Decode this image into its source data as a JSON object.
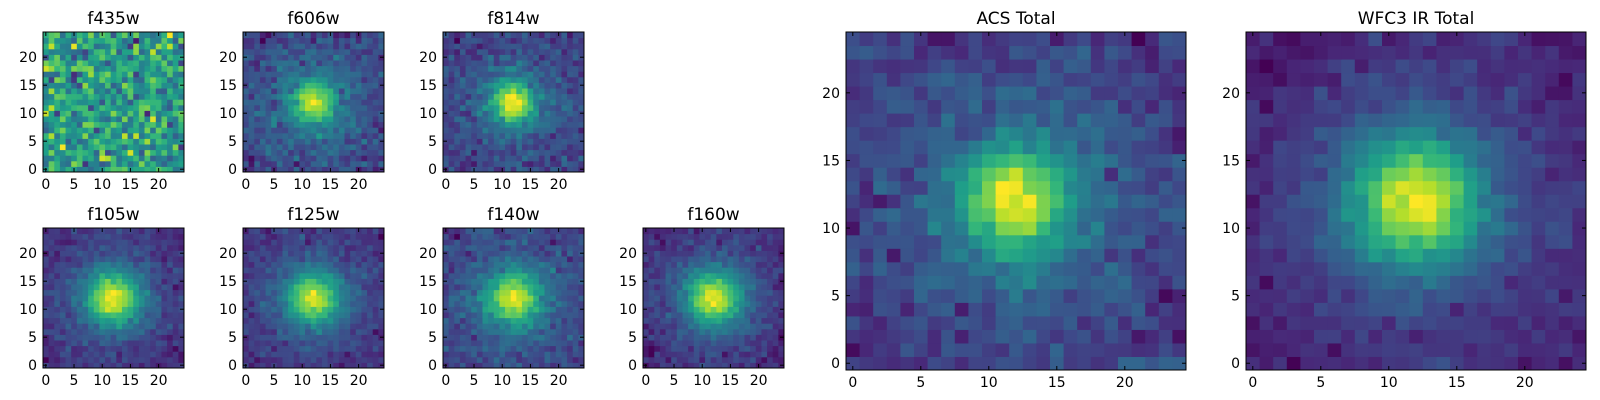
{
  "chart_data": [
    {
      "type": "heatmap",
      "title": "f435w",
      "xticks": [
        0,
        5,
        10,
        15,
        20
      ],
      "yticks": [
        0,
        5,
        10,
        15,
        20
      ],
      "xlim": [
        -0.5,
        24.5
      ],
      "ylim": [
        -0.5,
        24.5
      ],
      "grid_size": 25,
      "colormap": "viridis",
      "source_center": null,
      "source_sigma": 0,
      "noise_level": 0.95,
      "seed": 11
    },
    {
      "type": "heatmap",
      "title": "f606w",
      "xticks": [
        0,
        5,
        10,
        15,
        20
      ],
      "yticks": [
        0,
        5,
        10,
        15,
        20
      ],
      "xlim": [
        -0.5,
        24.5
      ],
      "ylim": [
        -0.5,
        24.5
      ],
      "grid_size": 25,
      "colormap": "viridis",
      "source_center": [
        12,
        12
      ],
      "source_sigma": 2.6,
      "noise_level": 0.38,
      "seed": 23
    },
    {
      "type": "heatmap",
      "title": "f814w",
      "xticks": [
        0,
        5,
        10,
        15,
        20
      ],
      "yticks": [
        0,
        5,
        10,
        15,
        20
      ],
      "xlim": [
        -0.5,
        24.5
      ],
      "ylim": [
        -0.5,
        24.5
      ],
      "grid_size": 25,
      "colormap": "viridis",
      "source_center": [
        12,
        12
      ],
      "source_sigma": 2.4,
      "noise_level": 0.32,
      "seed": 37
    },
    {
      "type": "heatmap",
      "title": "f105w",
      "xticks": [
        0,
        5,
        10,
        15,
        20
      ],
      "yticks": [
        0,
        5,
        10,
        15,
        20
      ],
      "xlim": [
        -0.5,
        24.5
      ],
      "ylim": [
        -0.5,
        24.5
      ],
      "grid_size": 25,
      "colormap": "viridis",
      "source_center": [
        12,
        12
      ],
      "source_sigma": 3.0,
      "noise_level": 0.22,
      "seed": 41
    },
    {
      "type": "heatmap",
      "title": "f125w",
      "xticks": [
        0,
        5,
        10,
        15,
        20
      ],
      "yticks": [
        0,
        5,
        10,
        15,
        20
      ],
      "xlim": [
        -0.5,
        24.5
      ],
      "ylim": [
        -0.5,
        24.5
      ],
      "grid_size": 25,
      "colormap": "viridis",
      "source_center": [
        12,
        12
      ],
      "source_sigma": 3.0,
      "noise_level": 0.24,
      "seed": 53
    },
    {
      "type": "heatmap",
      "title": "f140w",
      "xticks": [
        0,
        5,
        10,
        15,
        20
      ],
      "yticks": [
        0,
        5,
        10,
        15,
        20
      ],
      "xlim": [
        -0.5,
        24.5
      ],
      "ylim": [
        -0.5,
        24.5
      ],
      "grid_size": 25,
      "colormap": "viridis",
      "source_center": [
        12,
        12
      ],
      "source_sigma": 3.0,
      "noise_level": 0.28,
      "seed": 67
    },
    {
      "type": "heatmap",
      "title": "f160w",
      "xticks": [
        0,
        5,
        10,
        15,
        20
      ],
      "yticks": [
        0,
        5,
        10,
        15,
        20
      ],
      "xlim": [
        -0.5,
        24.5
      ],
      "ylim": [
        -0.5,
        24.5
      ],
      "grid_size": 25,
      "colormap": "viridis",
      "source_center": [
        12,
        12
      ],
      "source_sigma": 3.1,
      "noise_level": 0.22,
      "seed": 79
    },
    {
      "type": "heatmap",
      "title": "ACS Total",
      "xticks": [
        0,
        5,
        10,
        15,
        20
      ],
      "yticks": [
        0,
        5,
        10,
        15,
        20
      ],
      "xlim": [
        -0.5,
        24.5
      ],
      "ylim": [
        -0.5,
        24.5
      ],
      "grid_size": 25,
      "colormap": "viridis",
      "source_center": [
        12,
        12
      ],
      "source_sigma": 2.6,
      "noise_level": 0.3,
      "seed": 83
    },
    {
      "type": "heatmap",
      "title": "WFC3 IR Total",
      "xticks": [
        0,
        5,
        10,
        15,
        20
      ],
      "yticks": [
        0,
        5,
        10,
        15,
        20
      ],
      "xlim": [
        -0.5,
        24.5
      ],
      "ylim": [
        -0.5,
        24.5
      ],
      "grid_size": 25,
      "colormap": "viridis",
      "source_center": [
        12,
        12
      ],
      "source_sigma": 3.2,
      "noise_level": 0.18,
      "seed": 97
    }
  ]
}
